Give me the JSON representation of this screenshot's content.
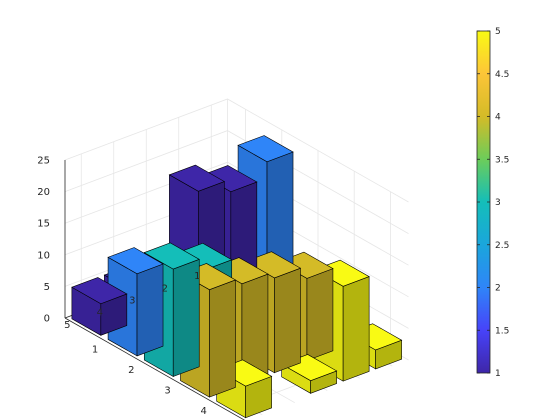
{
  "chart_data": {
    "type": "bar3",
    "title": "",
    "xlabel": "",
    "ylabel": "",
    "zlabel": "",
    "x_ticks": [
      "1",
      "2",
      "3",
      "4",
      "5"
    ],
    "y_ticks": [
      "1",
      "2",
      "3",
      "4",
      "5"
    ],
    "z_ticks": [
      "0",
      "5",
      "10",
      "15",
      "20",
      "25"
    ],
    "zlim": [
      0,
      25
    ],
    "grid": true,
    "colormap": "parula",
    "color_by": "column index (1-5)",
    "colorbar": {
      "location": "right",
      "ticks": [
        "1",
        "1.5",
        "2",
        "2.5",
        "3",
        "3.5",
        "4",
        "4.5",
        "5"
      ],
      "limits": [
        1,
        5
      ]
    },
    "series_colors": [
      "#3e26a8",
      "#2f85f8",
      "#14beb9",
      "#d4bb27",
      "#f9fa14"
    ],
    "data": [
      [
        15,
        23,
        1,
        5,
        3
      ],
      [
        17,
        4,
        6,
        13,
        15
      ],
      [
        3,
        6,
        10,
        15,
        2
      ],
      [
        5,
        11,
        15,
        16,
        0
      ],
      [
        5,
        13,
        17,
        17,
        5
      ]
    ]
  }
}
